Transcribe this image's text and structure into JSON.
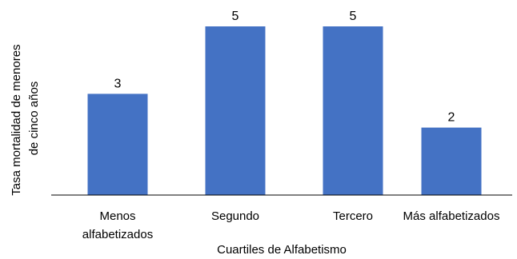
{
  "chart_data": {
    "type": "bar",
    "categories": [
      [
        "Menos",
        "alfabetizados"
      ],
      [
        "Segundo"
      ],
      [
        "Tercero"
      ],
      [
        "Más alfabetizados"
      ]
    ],
    "values": [
      3,
      5,
      5,
      2
    ],
    "data_labels": [
      "3",
      "5",
      "5",
      "2"
    ],
    "title": "",
    "xlabel": "Cuartiles de Alfabetismo",
    "ylabel": [
      "Tasa mortalidad de menores",
      "de cinco años"
    ],
    "ylim": [
      0,
      5
    ],
    "grid": false,
    "colors": {
      "bar": "#4472C4",
      "axis": "#000000"
    }
  }
}
